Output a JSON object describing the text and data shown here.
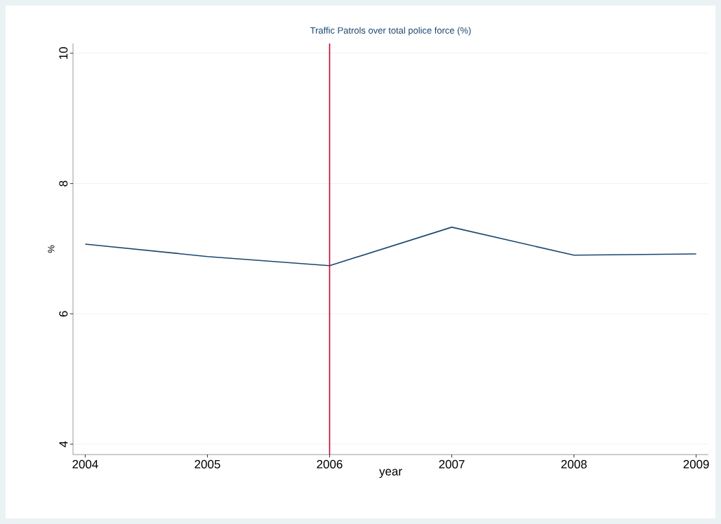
{
  "chart_data": {
    "type": "line",
    "title": "Traffic Patrols over total police force (%)",
    "xlabel": "year",
    "ylabel": "%",
    "x": [
      2004,
      2005,
      2006,
      2007,
      2008,
      2009
    ],
    "series": [
      {
        "color": "#1a476f",
        "values": [
          7.07,
          6.88,
          6.74,
          7.33,
          6.9,
          6.92
        ]
      }
    ],
    "xlim": [
      2003.9,
      2009.1
    ],
    "ylim": [
      3.84,
      10.15
    ],
    "xticks": [
      2004,
      2005,
      2006,
      2007,
      2008,
      2009
    ],
    "yticks": [
      4,
      6,
      8,
      10
    ],
    "grid": "y",
    "marker": "none",
    "line_style": "solid",
    "ref_lines": [
      {
        "axis": "x",
        "value": 2006,
        "color": "#c10534"
      }
    ]
  }
}
